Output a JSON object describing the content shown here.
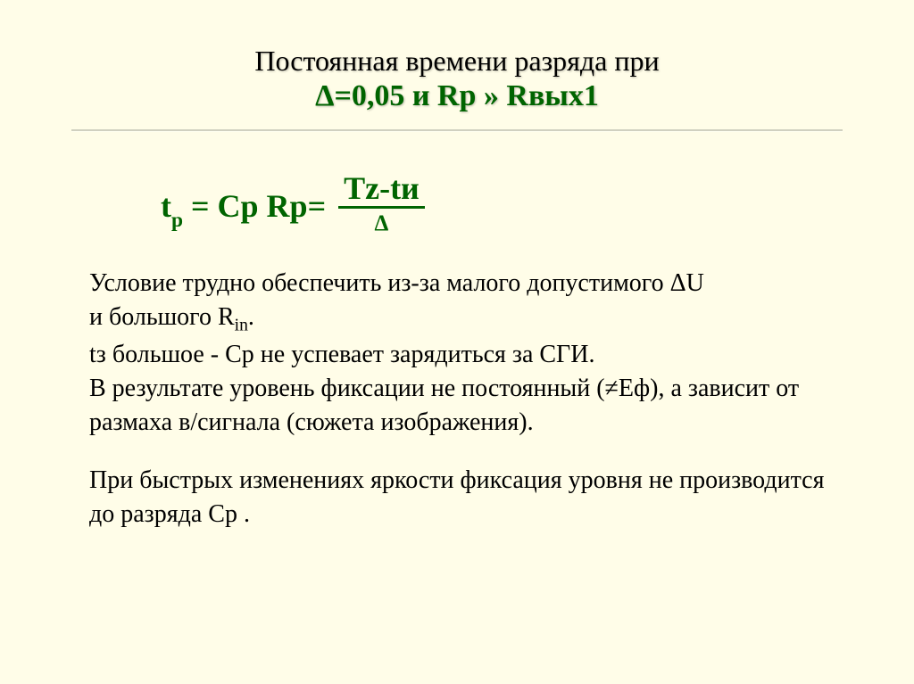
{
  "colors": {
    "background": "#fffde8",
    "accent": "#006400",
    "text": "#000000",
    "divider_top": "#d0d0c0",
    "divider_bot": "#fffff0"
  },
  "title": {
    "line1": "Постоянная времени разряда при",
    "delta_part": "Δ=0,05",
    "and_word": " и ",
    "rp_part": "Rр » Rвых1"
  },
  "equation": {
    "lhs_t": "t",
    "lhs_p": "р",
    "eq1": " =  Cр Rр= ",
    "num": "Tz-tи",
    "den": "Δ"
  },
  "body": {
    "p1a": "Условие трудно обеспечить из-за малого допустимого ΔU",
    "p1b": " и большого R",
    "p1b_sub": "in",
    "p1b_end": ".",
    "p2": "tз  большое -  Ср не успевает зарядиться за СГИ.",
    "p3": " В результате уровень фиксации не постоянный (≠Еф), а зависит от размаха в/сигнала (сюжета изображения).",
    "p4": " При быстрых изменениях яркости  фиксация уровня не  производится до разряда Ср ."
  },
  "typography": {
    "title_fontsize": 32,
    "title2_fontsize": 34,
    "equation_fontsize": 36,
    "body_fontsize": 28,
    "font_family": "Times New Roman"
  }
}
